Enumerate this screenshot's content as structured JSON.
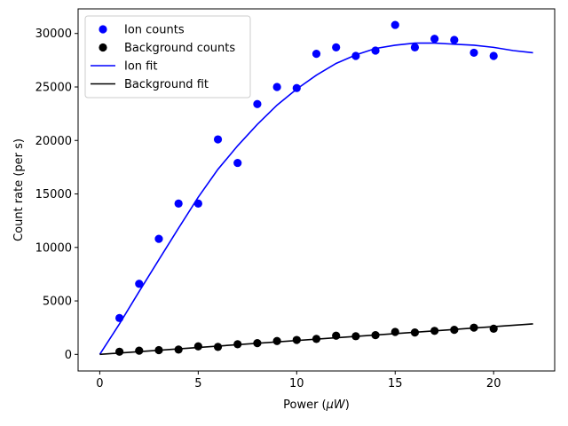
{
  "chart_data": {
    "type": "scatter",
    "xlabel_main": "Power (",
    "xlabel_mu": "μ",
    "xlabel_unit": "W",
    "xlabel_close": ")",
    "ylabel": "Count rate (per s)",
    "xlim": [
      -1.1,
      23.1
    ],
    "ylim": [
      -1550,
      32300
    ],
    "x_ticks": [
      0,
      5,
      10,
      15,
      20
    ],
    "x_tick_labels": [
      "0",
      "5",
      "10",
      "15",
      "20"
    ],
    "y_ticks": [
      0,
      5000,
      10000,
      15000,
      20000,
      25000,
      30000
    ],
    "y_tick_labels": [
      "0",
      "5000",
      "10000",
      "15000",
      "20000",
      "25000",
      "30000"
    ],
    "grid": false,
    "legend_position": "top-left",
    "colors": {
      "ion": "#0000ff",
      "background": "#000000"
    },
    "series": [
      {
        "name": "Ion counts",
        "kind": "scatter",
        "x": [
          1,
          2,
          3,
          4,
          5,
          6,
          7,
          8,
          9,
          10,
          11,
          12,
          13,
          14,
          15,
          16,
          17,
          18,
          19,
          20
        ],
        "y": [
          3400,
          6600,
          10800,
          14100,
          14100,
          20100,
          17900,
          23400,
          25000,
          24900,
          28100,
          28700,
          27900,
          28400,
          30800,
          28700,
          29500,
          29400,
          28200,
          27900
        ]
      },
      {
        "name": "Background counts",
        "kind": "scatter",
        "x": [
          1,
          2,
          3,
          4,
          5,
          6,
          7,
          8,
          9,
          10,
          11,
          12,
          13,
          14,
          15,
          16,
          17,
          18,
          19,
          20
        ],
        "y": [
          250,
          350,
          400,
          450,
          750,
          700,
          950,
          1050,
          1250,
          1350,
          1450,
          1750,
          1700,
          1800,
          2100,
          2050,
          2200,
          2300,
          2500,
          2400
        ]
      },
      {
        "name": "Ion fit",
        "kind": "line",
        "x": [
          0,
          1,
          2,
          3,
          4,
          5,
          6,
          7,
          8,
          9,
          10,
          11,
          12,
          13,
          14,
          15,
          16,
          17,
          18,
          19,
          20,
          21,
          22
        ],
        "y": [
          0,
          2850,
          5880,
          8850,
          11800,
          14700,
          17300,
          19500,
          21500,
          23300,
          24800,
          26100,
          27200,
          28000,
          28600,
          28900,
          29100,
          29100,
          29000,
          28900,
          28700,
          28400,
          28200
        ]
      },
      {
        "name": "Background fit",
        "kind": "line",
        "x": [
          0,
          22
        ],
        "y": [
          0,
          2850
        ]
      }
    ],
    "legend": [
      {
        "label": "Ion counts",
        "series": 0
      },
      {
        "label": "Background counts",
        "series": 1
      },
      {
        "label": "Ion fit",
        "series": 2
      },
      {
        "label": "Background fit",
        "series": 3
      }
    ]
  }
}
